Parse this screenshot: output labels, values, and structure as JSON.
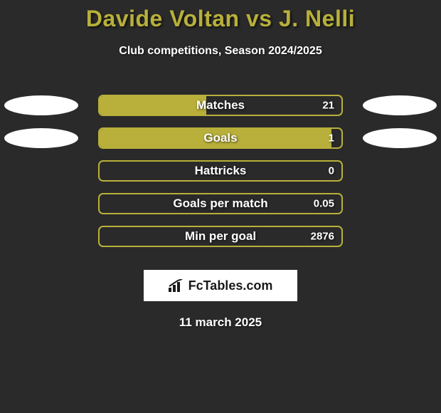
{
  "background_color": "#2a2a2a",
  "title": {
    "text": "Davide Voltan vs J. Nelli",
    "color": "#b8b03a",
    "fontsize": 32,
    "fontweight": 900
  },
  "subtitle": {
    "text": "Club competitions, Season 2024/2025",
    "color": "#ffffff",
    "fontsize": 16
  },
  "stats": [
    {
      "label": "Matches",
      "value": "21",
      "fill_pct": 44,
      "fill_color": "#b8b03a",
      "border_color": "#b8b03a",
      "show_left_ellipse": true,
      "show_right_ellipse": true,
      "ellipse_color": "#ffffff"
    },
    {
      "label": "Goals",
      "value": "1",
      "fill_pct": 96,
      "fill_color": "#b8b03a",
      "border_color": "#b8b03a",
      "show_left_ellipse": true,
      "show_right_ellipse": true,
      "ellipse_color": "#ffffff"
    },
    {
      "label": "Hattricks",
      "value": "0",
      "fill_pct": 0,
      "fill_color": "#b8b03a",
      "border_color": "#b8b03a",
      "show_left_ellipse": false,
      "show_right_ellipse": false
    },
    {
      "label": "Goals per match",
      "value": "0.05",
      "fill_pct": 0,
      "fill_color": "#b8b03a",
      "border_color": "#b8b03a",
      "show_left_ellipse": false,
      "show_right_ellipse": false
    },
    {
      "label": "Min per goal",
      "value": "2876",
      "fill_pct": 0,
      "fill_color": "#b8b03a",
      "border_color": "#b8b03a",
      "show_left_ellipse": false,
      "show_right_ellipse": false
    }
  ],
  "logo": {
    "text": "FcTables.com",
    "background_color": "#ffffff",
    "text_color": "#1a1a1a",
    "fontsize": 18
  },
  "date": {
    "text": "11 march 2025",
    "color": "#ffffff",
    "fontsize": 17
  }
}
